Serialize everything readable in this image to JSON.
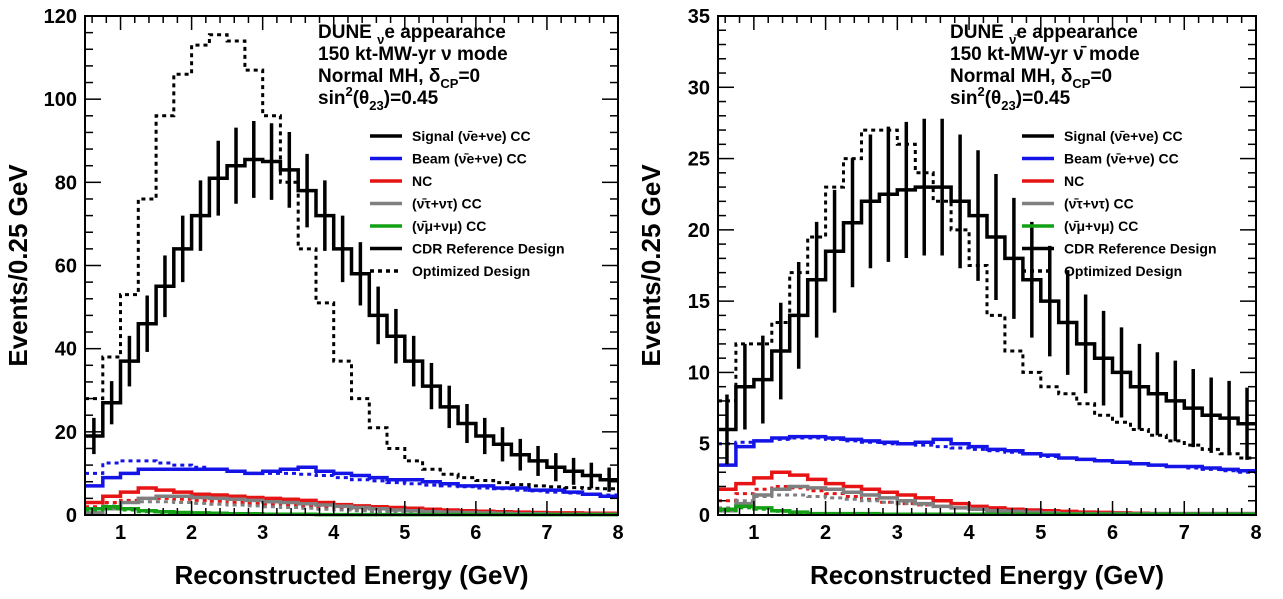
{
  "chart_data": [
    {
      "type": "step-histogram",
      "xlabel": "Reconstructed Energy (GeV)",
      "ylabel": "Events/0.25 GeV",
      "xlim": [
        0.5,
        8
      ],
      "ylim": [
        0,
        120
      ],
      "xticks": [
        1,
        2,
        3,
        4,
        5,
        6,
        7,
        8
      ],
      "yticks": [
        0,
        20,
        40,
        60,
        80,
        100,
        120
      ],
      "bin_width": 0.25,
      "annotation_lines": [
        [
          "DUNE ",
          "ν",
          "e",
          " appearance"
        ],
        [
          "150 kt-MW-yr ν mode"
        ],
        [
          "Normal MH, δ",
          "CP",
          "=0"
        ],
        [
          "sin",
          "2",
          "(θ",
          "23",
          ")=0.45"
        ]
      ],
      "legend": {
        "position": "top-right",
        "entries": [
          {
            "label": "Signal (ν̄e+νe) CC",
            "color": "#000000",
            "dashed": false
          },
          {
            "label": "Beam (ν̄e+νe) CC",
            "color": "#1414e6",
            "dashed": false
          },
          {
            "label": "NC",
            "color": "#e61414",
            "dashed": false
          },
          {
            "label": "(ν̄τ+ντ) CC",
            "color": "#7f7f7f",
            "dashed": false
          },
          {
            "label": "(ν̄μ+νμ) CC",
            "color": "#14a014",
            "dashed": false
          },
          {
            "label": "CDR Reference Design",
            "color": "#000000",
            "dashed": false
          },
          {
            "label": "Optimized Design",
            "color": "#000000",
            "dashed": true
          }
        ]
      },
      "series": [
        {
          "name": "CDR Reference Design",
          "color": "#000000",
          "dashed": false,
          "errorbars": true,
          "values": [
            19,
            27,
            37,
            46,
            55,
            64,
            72,
            81,
            84,
            85.5,
            85,
            83,
            78,
            72,
            64,
            58,
            48,
            43,
            37,
            31,
            26,
            22,
            19,
            17,
            14.5,
            13,
            11.5,
            10.5,
            9.5,
            8.5
          ]
        },
        {
          "name": "Optimized Design",
          "color": "#000000",
          "dashed": true,
          "errorbars": false,
          "values": [
            28,
            38,
            53,
            76,
            96,
            106,
            113,
            115.5,
            114,
            107,
            96,
            80,
            64,
            51,
            37,
            28,
            21,
            16,
            13,
            11,
            9.8,
            9,
            8.3,
            7.8,
            7.3,
            7,
            6.8,
            6.6,
            6.4,
            6.3
          ]
        },
        {
          "name": "Beam (ν̄e+νe) CC",
          "color": "#1414e6",
          "dashed": false,
          "errorbars": false,
          "values": [
            7,
            9,
            10,
            11,
            11,
            11,
            11,
            11,
            10.5,
            10,
            10.5,
            11,
            11.5,
            10.5,
            10,
            9.5,
            9,
            8.5,
            8.5,
            8,
            7.5,
            7,
            7,
            6.5,
            6.5,
            6,
            6,
            5.5,
            5,
            4.5
          ]
        },
        {
          "name": "Beam (ν̄e+νe) CC optimized",
          "color": "#1414e6",
          "dashed": true,
          "errorbars": false,
          "values": [
            10,
            12.5,
            13,
            13,
            12.5,
            12,
            11.5,
            11,
            10.5,
            10,
            10,
            10,
            9.8,
            9.5,
            9,
            8.5,
            8.2,
            7.8,
            7.5,
            7.2,
            7,
            6.8,
            6.5,
            6.3,
            6,
            5.8,
            5.5,
            5.3,
            5,
            4.8
          ]
        },
        {
          "name": "NC",
          "color": "#e61414",
          "dashed": false,
          "errorbars": false,
          "values": [
            3,
            4.5,
            5.5,
            6.5,
            6,
            5.5,
            5,
            4.8,
            4.5,
            4.2,
            4,
            3.8,
            3.5,
            3,
            2.5,
            2.2,
            2,
            1.8,
            1.6,
            1.4,
            1.2,
            1,
            0.9,
            0.8,
            0.7,
            0.6,
            0.5,
            0.5,
            0.4,
            0.4
          ]
        },
        {
          "name": "NC optimized",
          "color": "#e61414",
          "dashed": true,
          "errorbars": false,
          "values": [
            2,
            3,
            3.5,
            4,
            4,
            3.8,
            3.5,
            3.3,
            3,
            2.8,
            2.6,
            2.4,
            2.2,
            2,
            1.8,
            1.6,
            1.4,
            1.2,
            1,
            0.9,
            0.8,
            0.7,
            0.6,
            0.5,
            0.5,
            0.4,
            0.4,
            0.3,
            0.3,
            0.3
          ]
        },
        {
          "name": "(ν̄τ+ντ) CC",
          "color": "#7f7f7f",
          "dashed": false,
          "errorbars": false,
          "values": [
            0.5,
            1.5,
            3,
            4,
            4.5,
            4.5,
            4.2,
            4,
            3.8,
            3.5,
            3.2,
            3,
            2.7,
            2.4,
            2.1,
            1.8,
            1.5,
            1.2,
            1,
            0.8,
            0.7,
            0.6,
            0.5,
            0.4,
            0.3,
            0.3,
            0.2,
            0.2,
            0.2,
            0.2
          ]
        },
        {
          "name": "(ν̄τ+ντ) CC optimized",
          "color": "#7f7f7f",
          "dashed": true,
          "errorbars": false,
          "values": [
            1,
            2.2,
            3,
            3.2,
            3.2,
            3,
            2.8,
            2.6,
            2.4,
            2.2,
            2,
            1.8,
            1.6,
            1.4,
            1.2,
            1,
            0.8,
            0.7,
            0.6,
            0.5,
            0.4,
            0.35,
            0.3,
            0.25,
            0.2,
            0.2,
            0.15,
            0.15,
            0.1,
            0.1
          ]
        },
        {
          "name": "(ν̄μ+νμ) CC",
          "color": "#14a014",
          "dashed": false,
          "errorbars": false,
          "values": [
            1.5,
            2,
            1.5,
            1,
            0.8,
            0.6,
            0.5,
            0.4,
            0.3,
            0.3,
            0.2,
            0.2,
            0.2,
            0.1,
            0.1,
            0.1,
            0.1,
            0.1,
            0.1,
            0.1,
            0.1,
            0.1,
            0.1,
            0.1,
            0.1,
            0.1,
            0.1,
            0.1,
            0.1,
            0.1
          ]
        },
        {
          "name": "(ν̄μ+νμ) CC optimized",
          "color": "#14a014",
          "dashed": true,
          "errorbars": false,
          "values": [
            1.2,
            1.5,
            1.2,
            0.8,
            0.6,
            0.5,
            0.4,
            0.3,
            0.3,
            0.2,
            0.2,
            0.2,
            0.1,
            0.1,
            0.1,
            0.1,
            0.1,
            0.1,
            0.1,
            0.1,
            0.1,
            0.1,
            0.1,
            0.1,
            0.1,
            0.1,
            0.1,
            0.1,
            0.1,
            0.1
          ]
        }
      ]
    },
    {
      "type": "step-histogram",
      "xlabel": "Reconstructed Energy (GeV)",
      "ylabel": "Events/0.25 GeV",
      "xlim": [
        0.5,
        8
      ],
      "ylim": [
        0,
        35
      ],
      "xticks": [
        1,
        2,
        3,
        4,
        5,
        6,
        7,
        8
      ],
      "yticks": [
        0,
        5,
        10,
        15,
        20,
        25,
        30,
        35
      ],
      "bin_width": 0.25,
      "annotation_lines": [
        [
          "DUNE ",
          "ν̄",
          "e",
          " appearance"
        ],
        [
          "150 kt-MW-yr ν̄ mode"
        ],
        [
          "Normal MH, δ",
          "CP",
          "=0"
        ],
        [
          "sin",
          "2",
          "(θ",
          "23",
          ")=0.45"
        ]
      ],
      "legend": {
        "position": "top-right",
        "entries": [
          {
            "label": "Signal (ν̄e+νe) CC",
            "color": "#000000",
            "dashed": false
          },
          {
            "label": "Beam (ν̄e+νe) CC",
            "color": "#1414e6",
            "dashed": false
          },
          {
            "label": "NC",
            "color": "#e61414",
            "dashed": false
          },
          {
            "label": "(ν̄τ+ντ) CC",
            "color": "#7f7f7f",
            "dashed": false
          },
          {
            "label": "(ν̄μ+νμ) CC",
            "color": "#14a014",
            "dashed": false
          },
          {
            "label": "CDR Reference Design",
            "color": "#000000",
            "dashed": false
          },
          {
            "label": "Optimized Design",
            "color": "#000000",
            "dashed": true
          }
        ]
      },
      "series": [
        {
          "name": "CDR Reference Design",
          "color": "#000000",
          "dashed": false,
          "errorbars": true,
          "values": [
            6,
            9,
            9.5,
            11.5,
            14,
            16.5,
            18.5,
            20.5,
            22,
            22.5,
            22.8,
            23,
            23,
            22,
            21,
            19.5,
            18,
            16.5,
            15,
            13.5,
            12,
            11,
            10,
            9,
            8.5,
            8,
            7.5,
            7,
            6.8,
            6.4
          ]
        },
        {
          "name": "Optimized Design",
          "color": "#000000",
          "dashed": true,
          "errorbars": false,
          "values": [
            8,
            12,
            12,
            13.5,
            17,
            19.5,
            23,
            25,
            27,
            27,
            26,
            24,
            22,
            20,
            17.5,
            14,
            11.5,
            10,
            9,
            8.5,
            7.8,
            7,
            6.5,
            6,
            5.6,
            5.2,
            4.9,
            4.6,
            4.3,
            4
          ]
        },
        {
          "name": "Beam (ν̄e+νe) CC",
          "color": "#1414e6",
          "dashed": false,
          "errorbars": false,
          "values": [
            3.5,
            4.8,
            5.2,
            5.4,
            5.5,
            5.5,
            5.4,
            5.3,
            5.2,
            5.1,
            5,
            5.1,
            5.3,
            5,
            4.8,
            4.6,
            4.5,
            4.3,
            4.2,
            4,
            3.9,
            3.8,
            3.7,
            3.6,
            3.5,
            3.4,
            3.4,
            3.3,
            3.2,
            3.1
          ]
        },
        {
          "name": "Beam (ν̄e+νe) CC optimized",
          "color": "#1414e6",
          "dashed": true,
          "errorbars": false,
          "values": [
            5,
            5.1,
            5.2,
            5.3,
            5.4,
            5.4,
            5.3,
            5.2,
            5.1,
            5,
            5,
            4.9,
            4.8,
            4.7,
            4.6,
            4.5,
            4.4,
            4.3,
            4.1,
            4,
            3.9,
            3.8,
            3.7,
            3.6,
            3.5,
            3.4,
            3.3,
            3.2,
            3.1,
            3
          ]
        },
        {
          "name": "NC",
          "color": "#e61414",
          "dashed": false,
          "errorbars": false,
          "values": [
            1.8,
            2.2,
            2.6,
            3,
            2.8,
            2.5,
            2.2,
            2,
            1.8,
            1.6,
            1.4,
            1.2,
            1,
            0.8,
            0.6,
            0.5,
            0.4,
            0.35,
            0.3,
            0.25,
            0.2,
            0.18,
            0.15,
            0.12,
            0.1,
            0.1,
            0.1,
            0.1,
            0.1,
            0.1
          ]
        },
        {
          "name": "NC optimized",
          "color": "#e61414",
          "dashed": true,
          "errorbars": false,
          "values": [
            1,
            1.5,
            1.8,
            2,
            1.9,
            1.7,
            1.5,
            1.3,
            1.1,
            0.9,
            0.8,
            0.7,
            0.6,
            0.5,
            0.4,
            0.35,
            0.3,
            0.25,
            0.2,
            0.18,
            0.15,
            0.12,
            0.1,
            0.1,
            0.1,
            0.1,
            0.1,
            0.1,
            0.1,
            0.1
          ]
        },
        {
          "name": "(ν̄τ+ντ) CC",
          "color": "#7f7f7f",
          "dashed": false,
          "errorbars": false,
          "values": [
            0.3,
            0.8,
            1.4,
            1.8,
            2,
            1.9,
            1.8,
            1.6,
            1.4,
            1.2,
            1,
            0.8,
            0.6,
            0.5,
            0.4,
            0.3,
            0.25,
            0.2,
            0.15,
            0.1,
            0.1,
            0.1,
            0.1,
            0.1,
            0.1,
            0.1,
            0.1,
            0.1,
            0.1,
            0.1
          ]
        },
        {
          "name": "(ν̄τ+ντ) CC optimized",
          "color": "#7f7f7f",
          "dashed": true,
          "errorbars": false,
          "values": [
            0.5,
            1,
            1.3,
            1.4,
            1.4,
            1.3,
            1.2,
            1.1,
            1,
            0.9,
            0.8,
            0.7,
            0.6,
            0.5,
            0.4,
            0.3,
            0.25,
            0.2,
            0.15,
            0.1,
            0.1,
            0.1,
            0.1,
            0.1,
            0.1,
            0.1,
            0.1,
            0.1,
            0.1,
            0.1
          ]
        },
        {
          "name": "(ν̄μ+νμ) CC",
          "color": "#14a014",
          "dashed": false,
          "errorbars": false,
          "values": [
            0.4,
            0.6,
            0.5,
            0.3,
            0.2,
            0.1,
            0.1,
            0.1,
            0.1,
            0.05,
            0.05,
            0.05,
            0.05,
            0.05,
            0.05,
            0.05,
            0.05,
            0.05,
            0.05,
            0.05,
            0.05,
            0.05,
            0.05,
            0.05,
            0.05,
            0.05,
            0.05,
            0.05,
            0.05,
            0.05
          ]
        },
        {
          "name": "(ν̄μ+νμ) CC optimized",
          "color": "#14a014",
          "dashed": true,
          "errorbars": false,
          "values": [
            0.3,
            0.5,
            0.4,
            0.25,
            0.15,
            0.1,
            0.1,
            0.05,
            0.05,
            0.05,
            0.05,
            0.05,
            0.05,
            0.05,
            0.05,
            0.05,
            0.05,
            0.05,
            0.05,
            0.05,
            0.05,
            0.05,
            0.05,
            0.05,
            0.05,
            0.05,
            0.05,
            0.05,
            0.05,
            0.05
          ]
        }
      ]
    }
  ]
}
